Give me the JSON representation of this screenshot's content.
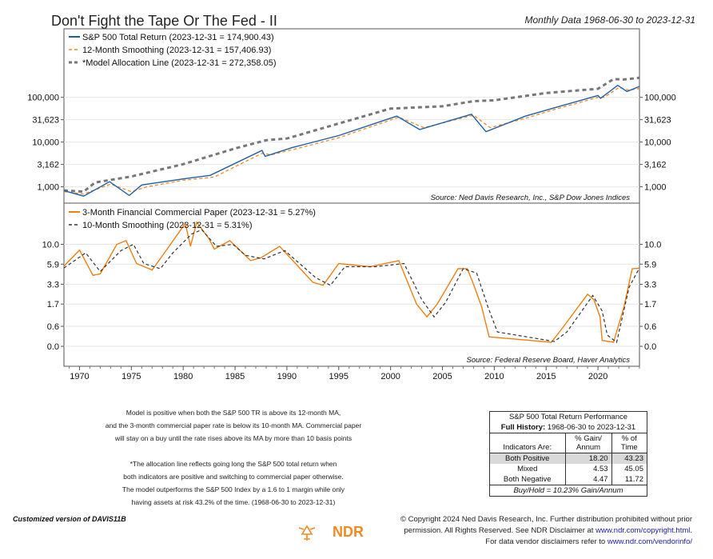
{
  "header": {
    "title": "Don't Fight the Tape Or The Fed - II",
    "subtitle": "Monthly Data 1968-06-30 to 2023-12-31"
  },
  "colors": {
    "sp500": "#1f5fa8",
    "smoothing_top": "#f08a24",
    "allocation": "#777777",
    "cp_rate": "#f07f12",
    "smoothing_bottom": "#333333",
    "table_highlight": "#d9d9d9"
  },
  "chart_data": [
    {
      "type": "line",
      "scale": "log",
      "ylim": [
        600,
        300000
      ],
      "xlim": [
        1968.5,
        2024.0
      ],
      "y_ticks": [
        1000,
        3162,
        10000,
        31623,
        100000
      ],
      "y_tick_labels": [
        "1,000",
        "3,162",
        "10,000",
        "31,623",
        "100,000"
      ],
      "source": "Source:  Ned Davis Research, Inc., S&P Dow Jones Indices",
      "series": [
        {
          "name": "S&P 500 Total Return (2023-12-31 = 174,900.43)",
          "x": [
            1968.5,
            1970.4,
            1972.9,
            1974.8,
            1976.0,
            1980.0,
            1982.6,
            1987.6,
            1987.9,
            1990.5,
            1995.0,
            2000.6,
            2002.8,
            2007.8,
            2009.2,
            2013.0,
            2016.0,
            2020.0,
            2020.25,
            2021.9,
            2022.8,
            2023.99
          ],
          "y": [
            820,
            620,
            1300,
            640,
            1100,
            1500,
            1800,
            6500,
            4800,
            7500,
            14000,
            38000,
            19000,
            42000,
            17000,
            38000,
            60000,
            110000,
            95000,
            185000,
            135000,
            174900.43
          ]
        },
        {
          "name": "12-Month Smoothing (2023-12-31 = 157,406.93)",
          "x": [
            1968.5,
            1970.4,
            1973.0,
            1975.0,
            1976.5,
            1980.0,
            1983.0,
            1987.6,
            1988.5,
            1990.8,
            1995.0,
            2000.8,
            2003.2,
            2008.0,
            2009.6,
            2013.0,
            2016.0,
            2020.0,
            2020.6,
            2022.0,
            2023.0,
            2023.99
          ],
          "y": [
            780,
            690,
            1150,
            780,
            1000,
            1400,
            1650,
            5600,
            5200,
            7000,
            12500,
            36000,
            21000,
            40000,
            21000,
            34000,
            55000,
            100000,
            100000,
            165000,
            145000,
            157406.93
          ]
        },
        {
          "name": "*Model Allocation Line (2023-12-31 = 272,358.05)",
          "x": [
            1968.5,
            1970.4,
            1971.5,
            1975.0,
            1980.0,
            1985.0,
            1988.0,
            1990.0,
            1995.0,
            2000.0,
            2005.0,
            2008.0,
            2010.0,
            2015.0,
            2020.0,
            2021.5,
            2022.5,
            2023.99
          ],
          "y": [
            830,
            780,
            1250,
            1700,
            3200,
            7200,
            11000,
            12000,
            26000,
            56000,
            63000,
            82000,
            86000,
            125000,
            155000,
            255000,
            250000,
            272358.05
          ]
        }
      ]
    },
    {
      "type": "line",
      "ylim": [
        -0.3,
        11.2
      ],
      "xlim": [
        1968.5,
        2024.0
      ],
      "y_ticks": [
        0.0,
        0.6,
        1.7,
        3.3,
        5.9,
        10.0
      ],
      "y_tick_labels": [
        "0.0",
        "0.6",
        "1.7",
        "3.3",
        "5.9",
        "10.0"
      ],
      "x_ticks": [
        1970,
        1975,
        1980,
        1985,
        1990,
        1995,
        2000,
        2005,
        2010,
        2015,
        2020
      ],
      "x_tick_labels": [
        "1970",
        "1975",
        "1980",
        "1985",
        "1990",
        "1995",
        "2000",
        "2005",
        "2010",
        "2015",
        "2020"
      ],
      "source": "Source:  Federal Reserve Board, Haver Analytics",
      "series": [
        {
          "name": "3-Month Financial Commercial Paper (2023-12-31 = 5.27%)",
          "x": [
            1968.5,
            1970.0,
            1971.3,
            1972.0,
            1973.6,
            1974.5,
            1975.5,
            1977.0,
            1978.5,
            1980.2,
            1980.7,
            1981.3,
            1982.5,
            1983.0,
            1984.5,
            1986.5,
            1987.5,
            1989.3,
            1992.5,
            1993.5,
            1995.0,
            1998.0,
            2000.8,
            2002.5,
            2003.5,
            2004.5,
            2006.5,
            2007.4,
            2008.0,
            2008.8,
            2009.5,
            2015.5,
            2016.5,
            2019.0,
            2019.6,
            2020.2,
            2020.4,
            2021.5,
            2022.5,
            2023.3,
            2023.99
          ],
          "y": [
            5.6,
            8.6,
            4.3,
            4.5,
            10.0,
            11.0,
            6.0,
            5.0,
            9.0,
            17.0,
            9.5,
            17.5,
            11.5,
            8.8,
            11.0,
            6.5,
            7.0,
            9.5,
            3.5,
            3.2,
            6.0,
            5.5,
            6.5,
            1.7,
            1.0,
            1.7,
            5.2,
            5.2,
            3.3,
            1.5,
            0.25,
            0.1,
            0.5,
            2.4,
            2.0,
            1.0,
            0.15,
            0.1,
            1.5,
            5.2,
            5.27
          ]
        },
        {
          "name": "10-Month Smoothing (2023-12-31 = 5.31%)",
          "x": [
            1968.5,
            1970.6,
            1972.0,
            1974.0,
            1975.2,
            1976.2,
            1977.8,
            1979.0,
            1980.8,
            1981.8,
            1983.2,
            1984.8,
            1986.0,
            1987.8,
            1989.8,
            1992.8,
            1994.2,
            1995.6,
            1998.5,
            2001.3,
            2003.0,
            2004.2,
            2005.3,
            2007.0,
            2008.3,
            2009.4,
            2010.3,
            2015.8,
            2017.0,
            2019.5,
            2020.4,
            2020.9,
            2021.8,
            2023.0,
            2023.99
          ],
          "y": [
            5.3,
            8.0,
            4.8,
            8.5,
            10.0,
            6.0,
            5.2,
            8.0,
            13.0,
            14.5,
            9.5,
            10.0,
            7.5,
            6.8,
            8.5,
            4.0,
            3.2,
            5.5,
            5.5,
            6.0,
            2.0,
            1.0,
            1.8,
            5.2,
            4.6,
            1.5,
            0.4,
            0.12,
            0.4,
            2.3,
            1.3,
            0.3,
            0.1,
            3.0,
            5.31
          ]
        }
      ]
    }
  ],
  "notes": {
    "line1": "Model is positive when both the S&P 500 TR is above its 12-month MA,",
    "line2": "and the 3-month commercial paper rate is below its 10-month MA. Commercial paper",
    "line3": "will stay on a buy until the rate rises above its MA by more than 10 basis points",
    "line4": "*The allocation line reflects going long the S&P 500 total return when",
    "line5": "both indicators are positive and switching to commercial paper otherwise.",
    "line6": "The model outperforms the S&P 500 Index by a 1.6 to 1 margin while only",
    "line7": "having assets at risk 43.2% of the time. (1968-06-30 to 2023-12-31)"
  },
  "performance_table": {
    "title": "S&P 500 Total Return Performance",
    "history_label": "Full History:",
    "history_range": "1968-06-30 to 2023-12-31",
    "col_indicators": "Indicators Are:",
    "col_gain_1": "% Gain/",
    "col_gain_2": "Annum",
    "col_time_1": "% of",
    "col_time_2": "Time",
    "rows": [
      {
        "label": "Both Positive",
        "gain": "18.20",
        "time": "43.23"
      },
      {
        "label": "Mixed",
        "gain": "4.53",
        "time": "45.05"
      },
      {
        "label": "Both Negative",
        "gain": "4.47",
        "time": "11.72"
      }
    ],
    "footer": "Buy/Hold = 10.23% Gain/Annum"
  },
  "footer": {
    "customized": "Customized version of DAVIS11B",
    "logo_text": "NDR",
    "copyright_1": "© Copyright 2024 Ned Davis Research, Inc. Further distribution prohibited without prior",
    "copyright_2a": "permission. All Rights Reserved. See NDR Disclaimer at ",
    "copyright_2b": "www.ndr.com/copyright.html",
    "copyright_2c": ".",
    "copyright_3a": "For data vendor disclaimers refer to ",
    "copyright_3b": "www.ndr.com/vendorinfo/"
  }
}
